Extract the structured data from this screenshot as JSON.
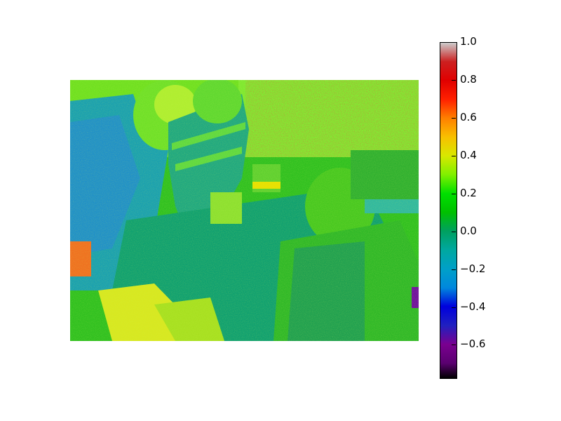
{
  "figure": {
    "image_description_icon": "false-color-photo",
    "colormap": "nipy_spectral",
    "colorbar": {
      "vmin": -0.78,
      "vmax": 1.0,
      "ticks": [
        "1.0",
        "0.8",
        "0.6",
        "0.4",
        "0.2",
        "0.0",
        "−0.2",
        "−0.4",
        "−0.6"
      ],
      "tick_values": [
        1.0,
        0.8,
        0.6,
        0.4,
        0.2,
        0.0,
        -0.2,
        -0.4,
        -0.6
      ],
      "colors": [
        {
          "v": -0.78,
          "c": "#000000"
        },
        {
          "v": -0.7,
          "c": "#5a0070"
        },
        {
          "v": -0.6,
          "c": "#7a0090"
        },
        {
          "v": -0.5,
          "c": "#2020c0"
        },
        {
          "v": -0.4,
          "c": "#0000dd"
        },
        {
          "v": -0.3,
          "c": "#0088dd"
        },
        {
          "v": -0.2,
          "c": "#00a0c8"
        },
        {
          "v": -0.1,
          "c": "#00a8a0"
        },
        {
          "v": 0.0,
          "c": "#00a060"
        },
        {
          "v": 0.1,
          "c": "#00c000"
        },
        {
          "v": 0.2,
          "c": "#00e000"
        },
        {
          "v": 0.3,
          "c": "#80f000"
        },
        {
          "v": 0.4,
          "c": "#d8e800"
        },
        {
          "v": 0.5,
          "c": "#f8c000"
        },
        {
          "v": 0.6,
          "c": "#ff8000"
        },
        {
          "v": 0.7,
          "c": "#ff2000"
        },
        {
          "v": 0.8,
          "c": "#e00000"
        },
        {
          "v": 0.9,
          "c": "#cc2020"
        },
        {
          "v": 1.0,
          "c": "#cccccc"
        }
      ]
    }
  }
}
